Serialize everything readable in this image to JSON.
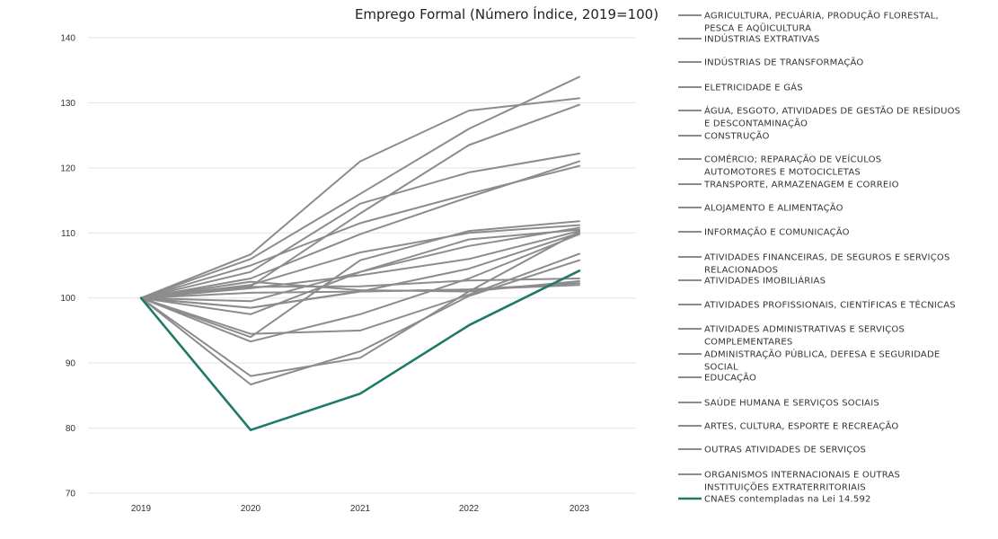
{
  "chart_data": {
    "type": "line",
    "title": "Emprego Formal (Número Índice, 2019=100)",
    "xlabel": "",
    "ylabel": "",
    "x": [
      "2019",
      "2020",
      "2021",
      "2022",
      "2023"
    ],
    "ylim": [
      70,
      140
    ],
    "yticks": [
      70,
      80,
      90,
      100,
      110,
      120,
      130,
      140
    ],
    "grid": true,
    "legend_position": "right",
    "colors": {
      "sector": "#8c8c8c",
      "highlight": "#1f7a68",
      "grid": "#e3e3e3"
    },
    "series": [
      {
        "name": "AGRICULTURA, PECUÁRIA, PRODUÇÃO FLORESTAL, PESCA E AQÜICULTURA",
        "values": [
          100,
          98.5,
          101.0,
          101.3,
          102.3
        ]
      },
      {
        "name": "INDÚSTRIAS EXTRATIVAS",
        "values": [
          100,
          101.5,
          103.5,
          106.0,
          110.3
        ]
      },
      {
        "name": "INDÚSTRIAS DE TRANSFORMAÇÃO",
        "values": [
          100,
          99.5,
          104.0,
          108.0,
          110.8
        ]
      },
      {
        "name": "ELETRICIDADE E GÁS",
        "values": [
          100,
          102.5,
          101.2,
          101.0,
          102.6
        ]
      },
      {
        "name": "ÁGUA, ESGOTO, ATIVIDADES DE GESTÃO DE RESÍDUOS E DESCONTAMINAÇÃO",
        "values": [
          100,
          102.0,
          107.0,
          110.0,
          111.2
        ]
      },
      {
        "name": "CONSTRUÇÃO",
        "values": [
          100,
          97.5,
          104.0,
          109.0,
          110.5
        ]
      },
      {
        "name": "COMÉRCIO; REPARAÇÃO DE VEÍCULOS AUTOMOTORES E MOTOCICLETAS",
        "values": [
          100,
          98.5,
          101.0,
          104.5,
          110.0
        ]
      },
      {
        "name": "TRANSPORTE, ARMAZENAGEM E CORREIO",
        "values": [
          100,
          94.5,
          95.0,
          100.5,
          106.8
        ]
      },
      {
        "name": "ALOJAMENTO E ALIMENTAÇÃO",
        "values": [
          100,
          86.7,
          91.8,
          100.3,
          105.8
        ]
      },
      {
        "name": "INFORMAÇÃO E COMUNICAÇÃO",
        "values": [
          100,
          106.7,
          121.0,
          128.8,
          130.7
        ]
      },
      {
        "name": "ATIVIDADES FINANCEIRAS, DE SEGUROS E SERVIÇOS RELACIONADOS",
        "values": [
          100,
          101.7,
          101.8,
          102.7,
          103.0
        ]
      },
      {
        "name": "ATIVIDADES IMOBILIÁRIAS",
        "values": [
          100,
          103.0,
          109.8,
          115.5,
          121.0
        ]
      },
      {
        "name": "ATIVIDADES PROFISSIONAIS, CIENTÍFICAS E TÉCNICAS",
        "values": [
          100,
          106.0,
          116.0,
          126.0,
          134.0
        ]
      },
      {
        "name": "ATIVIDADES ADMINISTRATIVAS E SERVIÇOS COMPLEMENTARES",
        "values": [
          100,
          101.8,
          113.0,
          123.5,
          129.7
        ]
      },
      {
        "name": "ADMINISTRAÇÃO PÚBLICA, DEFESA E SEGURIDADE SOCIAL",
        "values": [
          100,
          100.8,
          101.0,
          101.3,
          102.0
        ]
      },
      {
        "name": "EDUCAÇÃO",
        "values": [
          100,
          93.3,
          97.5,
          103.0,
          109.8
        ]
      },
      {
        "name": "SAÚDE HUMANA E SERVIÇOS SOCIAIS",
        "values": [
          100,
          105.0,
          111.5,
          116.0,
          120.3
        ]
      },
      {
        "name": "ARTES, CULTURA, ESPORTE E RECREAÇÃO",
        "values": [
          100,
          88.0,
          90.8,
          101.0,
          110.2
        ]
      },
      {
        "name": "OUTRAS ATIVIDADES DE SERVIÇOS",
        "values": [
          100,
          94.0,
          105.8,
          110.3,
          111.8
        ]
      },
      {
        "name": "ORGANISMOS INTERNACIONAIS E OUTRAS INSTITUIÇÕES EXTRATERRITORIAIS",
        "values": [
          100,
          104.0,
          114.5,
          119.3,
          122.2
        ]
      },
      {
        "name": "CNAES contempladas na Lei 14.592",
        "values": [
          100,
          79.7,
          85.3,
          95.8,
          104.2
        ],
        "highlight": true
      }
    ],
    "legend": [
      {
        "lines": [
          "AGRICULTURA, PECUÁRIA, PRODUÇÃO FLORESTAL,",
          "PESCA E AQÜICULTURA"
        ]
      },
      {
        "lines": [
          "INDÚSTRIAS EXTRATIVAS"
        ]
      },
      {
        "lines": [
          "INDÚSTRIAS DE TRANSFORMAÇÃO"
        ]
      },
      {
        "lines": [
          "ELETRICIDADE E GÁS"
        ]
      },
      {
        "lines": [
          "ÁGUA, ESGOTO, ATIVIDADES DE GESTÃO DE RESÍDUOS",
          "E DESCONTAMINAÇÃO"
        ]
      },
      {
        "lines": [
          "CONSTRUÇÃO"
        ]
      },
      {
        "lines": [
          "COMÉRCIO; REPARAÇÃO DE VEÍCULOS",
          "AUTOMOTORES E MOTOCICLETAS"
        ]
      },
      {
        "lines": [
          "TRANSPORTE, ARMAZENAGEM E CORREIO"
        ]
      },
      {
        "lines": [
          "ALOJAMENTO E ALIMENTAÇÃO"
        ]
      },
      {
        "lines": [
          "INFORMAÇÃO E COMUNICAÇÃO"
        ]
      },
      {
        "lines": [
          "ATIVIDADES FINANCEIRAS, DE SEGUROS E SERVIÇOS",
          "RELACIONADOS"
        ]
      },
      {
        "lines": [
          "ATIVIDADES IMOBILIÁRIAS"
        ]
      },
      {
        "lines": [
          "ATIVIDADES PROFISSIONAIS, CIENTÍFICAS E TÉCNICAS"
        ]
      },
      {
        "lines": [
          "ATIVIDADES ADMINISTRATIVAS E SERVIÇOS",
          "COMPLEMENTARES"
        ]
      },
      {
        "lines": [
          "ADMINISTRAÇÃO PÚBLICA, DEFESA E SEGURIDADE",
          "SOCIAL"
        ]
      },
      {
        "lines": [
          "EDUCAÇÃO"
        ]
      },
      {
        "lines": [
          "SAÚDE HUMANA E SERVIÇOS SOCIAIS"
        ]
      },
      {
        "lines": [
          "ARTES, CULTURA, ESPORTE E RECREAÇÃO"
        ]
      },
      {
        "lines": [
          "OUTRAS ATIVIDADES DE SERVIÇOS"
        ]
      },
      {
        "lines": [
          "ORGANISMOS INTERNACIONAIS E OUTRAS",
          "INSTITUIÇÕES EXTRATERRITORIAIS"
        ]
      },
      {
        "lines": [
          "CNAES contempladas na Lei 14.592"
        ],
        "highlight": true
      }
    ]
  }
}
